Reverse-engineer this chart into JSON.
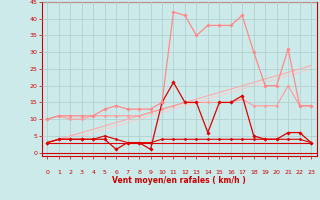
{
  "x": [
    0,
    1,
    2,
    3,
    4,
    5,
    6,
    7,
    8,
    9,
    10,
    11,
    12,
    13,
    14,
    15,
    16,
    17,
    18,
    19,
    20,
    21,
    22,
    23
  ],
  "series": [
    {
      "name": "line1_dark_main",
      "color": "#dd0000",
      "lw": 0.9,
      "marker": "D",
      "ms": 1.8,
      "zorder": 5,
      "y": [
        3,
        4,
        4,
        4,
        4,
        4,
        1,
        3,
        3,
        1,
        15,
        21,
        15,
        15,
        6,
        15,
        15,
        17,
        5,
        4,
        4,
        6,
        6,
        3
      ]
    },
    {
      "name": "line2_dark_flat",
      "color": "#dd0000",
      "lw": 0.8,
      "marker": "D",
      "ms": 1.5,
      "zorder": 4,
      "y": [
        3,
        4,
        4,
        4,
        4,
        5,
        4,
        3,
        3,
        3,
        4,
        4,
        4,
        4,
        4,
        4,
        4,
        4,
        4,
        4,
        4,
        4,
        4,
        3
      ]
    },
    {
      "name": "line3_dark_flat2",
      "color": "#dd0000",
      "lw": 0.8,
      "marker": null,
      "ms": 0,
      "zorder": 3,
      "y": [
        3,
        3,
        3,
        3,
        3,
        3,
        3,
        3,
        3,
        3,
        3,
        3,
        3,
        3,
        3,
        3,
        3,
        3,
        3,
        3,
        3,
        3,
        3,
        3
      ]
    },
    {
      "name": "line4_light_peak",
      "color": "#ff8888",
      "lw": 0.9,
      "marker": "D",
      "ms": 1.8,
      "zorder": 5,
      "y": [
        10,
        11,
        11,
        11,
        11,
        13,
        14,
        13,
        13,
        13,
        15,
        42,
        41,
        35,
        38,
        38,
        38,
        41,
        30,
        20,
        20,
        31,
        14,
        14
      ]
    },
    {
      "name": "line5_light_med",
      "color": "#ff9999",
      "lw": 0.8,
      "marker": "D",
      "ms": 1.5,
      "zorder": 4,
      "y": [
        10,
        11,
        10,
        10,
        11,
        11,
        11,
        11,
        11,
        12,
        13,
        14,
        15,
        15,
        15,
        15,
        15,
        16,
        14,
        14,
        14,
        20,
        14,
        14
      ]
    },
    {
      "name": "line6_light_diag1",
      "color": "#ffaaaa",
      "lw": 0.8,
      "marker": null,
      "ms": 0,
      "zorder": 3,
      "y": [
        3,
        4,
        5,
        6,
        7,
        8,
        9,
        10,
        11,
        12,
        13,
        14,
        15,
        16,
        17,
        18,
        19,
        20,
        21,
        22,
        23,
        24,
        25,
        26
      ]
    },
    {
      "name": "line7_light_diag2",
      "color": "#ffcccc",
      "lw": 0.8,
      "marker": null,
      "ms": 0,
      "zorder": 2,
      "y": [
        3,
        4,
        5,
        5,
        6,
        7,
        8,
        9,
        10,
        11,
        12,
        13,
        14,
        15,
        16,
        17,
        18,
        19,
        20,
        21,
        22,
        23,
        24,
        25
      ]
    }
  ],
  "xlim": [
    -0.5,
    23.5
  ],
  "ylim": [
    -1,
    45
  ],
  "yticks": [
    0,
    5,
    10,
    15,
    20,
    25,
    30,
    35,
    40,
    45
  ],
  "xticks": [
    0,
    1,
    2,
    3,
    4,
    5,
    6,
    7,
    8,
    9,
    10,
    11,
    12,
    13,
    14,
    15,
    16,
    17,
    18,
    19,
    20,
    21,
    22,
    23
  ],
  "xlabel": "Vent moyen/en rafales ( km/h )",
  "bg_color": "#cdeaea",
  "grid_color": "#b0cccc",
  "tick_color": "#cc0000",
  "label_color": "#cc0000",
  "figsize": [
    3.2,
    2.0
  ],
  "dpi": 100
}
